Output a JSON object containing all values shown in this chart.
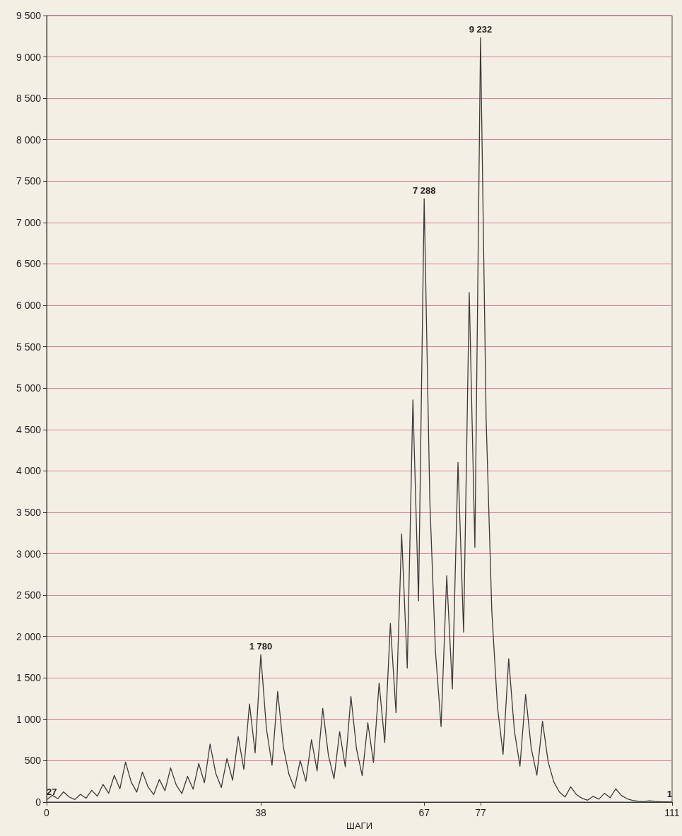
{
  "chart_data": {
    "type": "line",
    "xlabel": "ШАГИ",
    "x": [
      0,
      1,
      2,
      3,
      4,
      5,
      6,
      7,
      8,
      9,
      10,
      11,
      12,
      13,
      14,
      15,
      16,
      17,
      18,
      19,
      20,
      21,
      22,
      23,
      24,
      25,
      26,
      27,
      28,
      29,
      30,
      31,
      32,
      33,
      34,
      35,
      36,
      37,
      38,
      39,
      40,
      41,
      42,
      43,
      44,
      45,
      46,
      47,
      48,
      49,
      50,
      51,
      52,
      53,
      54,
      55,
      56,
      57,
      58,
      59,
      60,
      61,
      62,
      63,
      64,
      65,
      66,
      67,
      68,
      69,
      70,
      71,
      72,
      73,
      74,
      75,
      76,
      77,
      78,
      79,
      80,
      81,
      82,
      83,
      84,
      85,
      86,
      87,
      88,
      89,
      90,
      91,
      92,
      93,
      94,
      95,
      96,
      97,
      98,
      99,
      100,
      101,
      102,
      103,
      104,
      105,
      106,
      107,
      108,
      109,
      110,
      111
    ],
    "series": [
      {
        "color": "#3a3a3a",
        "values": [
          27,
          82,
          41,
          124,
          62,
          31,
          94,
          47,
          142,
          71,
          214,
          107,
          322,
          161,
          484,
          242,
          121,
          364,
          182,
          91,
          274,
          137,
          412,
          206,
          103,
          310,
          155,
          466,
          233,
          700,
          350,
          175,
          526,
          263,
          790,
          395,
          1186,
          593,
          1780,
          890,
          445,
          1336,
          668,
          334,
          167,
          502,
          251,
          754,
          377,
          1132,
          566,
          283,
          850,
          425,
          1276,
          638,
          319,
          958,
          479,
          1438,
          719,
          2158,
          1079,
          3238,
          1619,
          4858,
          2429,
          7288,
          3644,
          1822,
          911,
          2734,
          1367,
          4102,
          2051,
          6154,
          3077,
          9232,
          4616,
          2308,
          1154,
          577,
          1732,
          866,
          433,
          1300,
          650,
          325,
          976,
          488,
          244,
          122,
          61,
          184,
          92,
          46,
          23,
          70,
          35,
          106,
          53,
          160,
          80,
          40,
          20,
          10,
          5,
          16,
          8,
          4,
          2,
          1
        ],
        "value_labels": [
          "27",
          null,
          null,
          null,
          null,
          null,
          null,
          null,
          null,
          null,
          null,
          null,
          null,
          null,
          null,
          null,
          null,
          null,
          null,
          null,
          null,
          null,
          null,
          null,
          null,
          null,
          null,
          null,
          null,
          null,
          null,
          null,
          null,
          null,
          null,
          null,
          null,
          null,
          "1 780",
          null,
          null,
          null,
          null,
          null,
          null,
          null,
          null,
          null,
          null,
          null,
          null,
          null,
          null,
          null,
          null,
          null,
          null,
          null,
          null,
          null,
          null,
          null,
          null,
          null,
          null,
          null,
          null,
          "7 288",
          null,
          null,
          null,
          null,
          null,
          null,
          null,
          null,
          null,
          "9 232",
          null,
          null,
          null,
          null,
          null,
          null,
          null,
          null,
          null,
          null,
          null,
          null,
          null,
          null,
          null,
          null,
          null,
          null,
          null,
          null,
          null,
          null,
          null,
          null,
          null,
          null,
          null,
          null,
          null,
          null,
          null,
          null,
          null,
          "1"
        ]
      }
    ],
    "xlim": [
      0,
      111
    ],
    "xticks": [
      0,
      38,
      67,
      77,
      111
    ],
    "ylim": [
      0,
      9500
    ],
    "yticks": [
      0,
      500,
      {
        "value": 1000,
        "label": "1 000"
      },
      {
        "value": 1500,
        "label": "1 500"
      },
      {
        "value": 2000,
        "label": "2 000"
      },
      {
        "value": 2500,
        "label": "2 500"
      },
      {
        "value": 3000,
        "label": "3 000"
      },
      {
        "value": 3500,
        "label": "3 500"
      },
      {
        "value": 4000,
        "label": "4 000"
      },
      {
        "value": 4500,
        "label": "4 500"
      },
      {
        "value": 5000,
        "label": "5 000"
      },
      {
        "value": 5500,
        "label": "5 500"
      },
      {
        "value": 6000,
        "label": "6 000"
      },
      {
        "value": 6500,
        "label": "6 500"
      },
      {
        "value": 7000,
        "label": "7 000"
      },
      {
        "value": 7500,
        "label": "7 500"
      },
      {
        "value": 8000,
        "label": "8 000"
      },
      {
        "value": 8500,
        "label": "8 500"
      },
      {
        "value": 9000,
        "label": "9 000"
      },
      {
        "value": 9500,
        "label": "9 500"
      }
    ],
    "grid": "y",
    "marker": "none",
    "line_style": "solid"
  }
}
